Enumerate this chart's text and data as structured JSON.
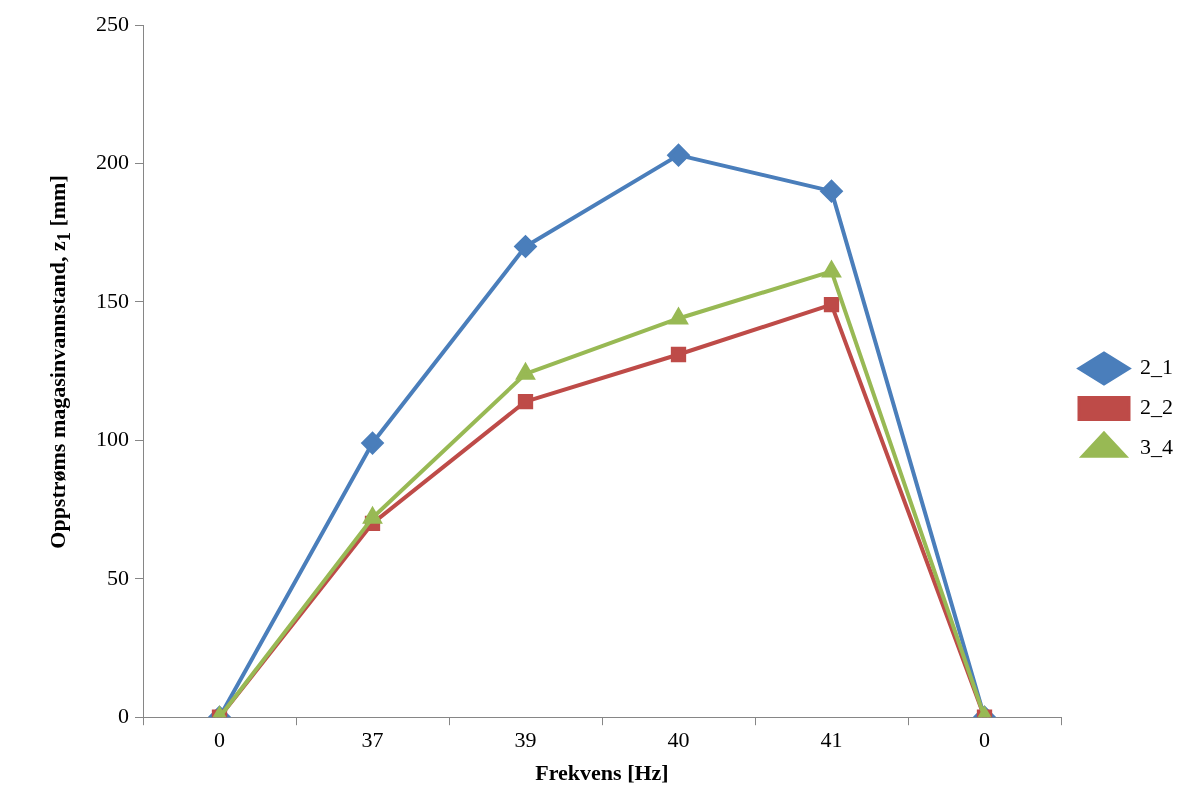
{
  "chart_data": {
    "type": "line",
    "xlabel": "Frekvens [Hz]",
    "ylabel": "Oppstrøms magasinvannstand, z$_{1}$ [mm]",
    "categories": [
      "0",
      "37",
      "39",
      "40",
      "41",
      "0"
    ],
    "series": [
      {
        "name": "2_1",
        "color": "#4a7ebb",
        "marker": "diamond",
        "values": [
          0,
          99,
          170,
          203,
          190,
          0
        ]
      },
      {
        "name": "2_2",
        "color": "#be4b48",
        "marker": "square",
        "values": [
          0,
          70,
          114,
          131,
          149,
          0
        ]
      },
      {
        "name": "3_4",
        "color": "#98b954",
        "marker": "triangle",
        "values": [
          0,
          72,
          124,
          144,
          161,
          0
        ]
      }
    ],
    "ylim": [
      0,
      250
    ],
    "yticks": [
      0,
      50,
      100,
      150,
      200,
      250
    ],
    "legend": "right",
    "line_style": "solid"
  }
}
